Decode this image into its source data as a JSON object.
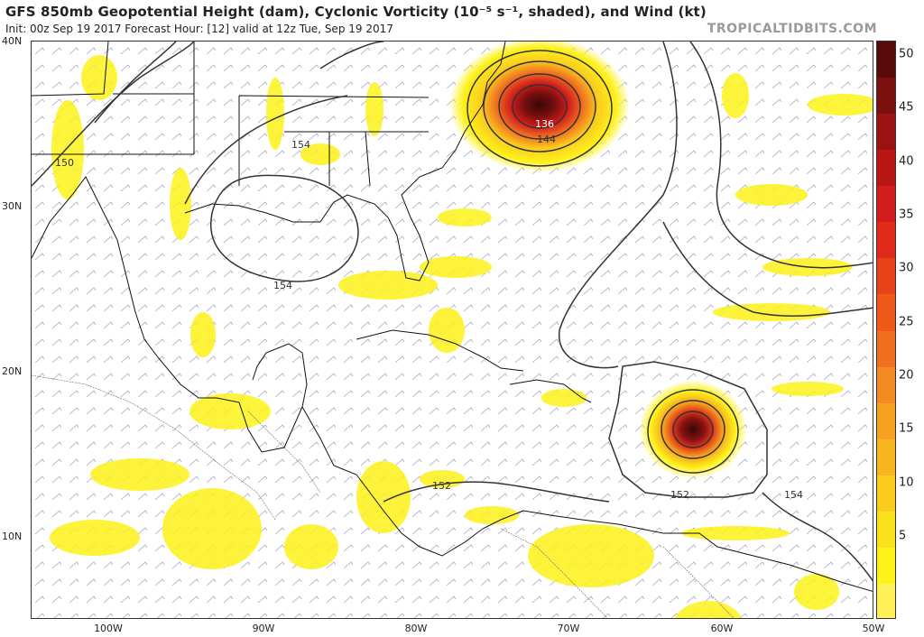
{
  "header": {
    "title": "GFS 850mb Geopotential Height (dam), Cyclonic Vorticity (10⁻⁵ s⁻¹, shaded), and Wind (kt)",
    "subtitle": "Init: 00z Sep 19 2017   Forecast Hour: [12]   valid at 12z Tue, Sep 19 2017",
    "brand": "TROPICALTIDBITS.COM"
  },
  "axes": {
    "latitudes": [
      "40N",
      "30N",
      "20N",
      "10N"
    ],
    "longitudes": [
      "100W",
      "90W",
      "80W",
      "70W",
      "60W",
      "50W"
    ]
  },
  "contour_labels": [
    "150",
    "154",
    "154",
    "136",
    "144",
    "152",
    "152",
    "154"
  ],
  "colorbar": {
    "ticks": [
      "50",
      "45",
      "40",
      "35",
      "30",
      "25",
      "20",
      "15",
      "10",
      "5"
    ],
    "colors": [
      "#5a0a0a",
      "#7a1010",
      "#9a1212",
      "#b81515",
      "#d01c1c",
      "#e02a1a",
      "#e8421a",
      "#ee5a1a",
      "#f07020",
      "#f28a22",
      "#f5a020",
      "#f7b620",
      "#f9cc1e",
      "#fbe11c",
      "#fdf21a",
      "#fff05a"
    ]
  },
  "layers": {
    "storms": [
      "hurricane-maria",
      "hurricane-jose"
    ],
    "map_region": "Gulf of Mexico, Caribbean, Western Atlantic"
  }
}
